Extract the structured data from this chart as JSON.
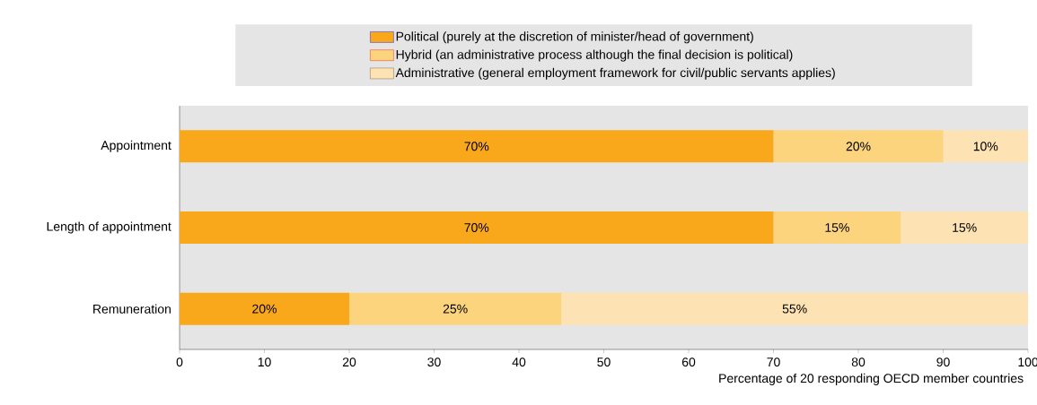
{
  "chart_data": {
    "type": "bar",
    "orientation": "horizontal",
    "stacked": true,
    "categories": [
      "Appointment",
      "Length of appointment",
      "Remuneration"
    ],
    "series": [
      {
        "name": "Political (purely at the discretion of minister/head of government)",
        "color": "#f9a81b",
        "values": [
          70,
          70,
          20
        ],
        "value_labels": [
          "70%",
          "70%",
          "20%"
        ]
      },
      {
        "name": "Hybrid (an administrative process although the final decision is political)",
        "color": "#fdd47e",
        "values": [
          20,
          15,
          25
        ],
        "value_labels": [
          "20%",
          "15%",
          "25%"
        ]
      },
      {
        "name": "Administrative (general employment framework for civil/public servants applies)",
        "color": "#fde3b3",
        "values": [
          10,
          15,
          55
        ],
        "value_labels": [
          "10%",
          "15%",
          "55%"
        ]
      }
    ],
    "xlabel": "Percentage of 20 responding OECD member countries",
    "xlim": [
      0,
      100
    ],
    "xticks": [
      0,
      10,
      20,
      30,
      40,
      50,
      60,
      70,
      80,
      90,
      100
    ],
    "legend": "top",
    "grid": false
  }
}
